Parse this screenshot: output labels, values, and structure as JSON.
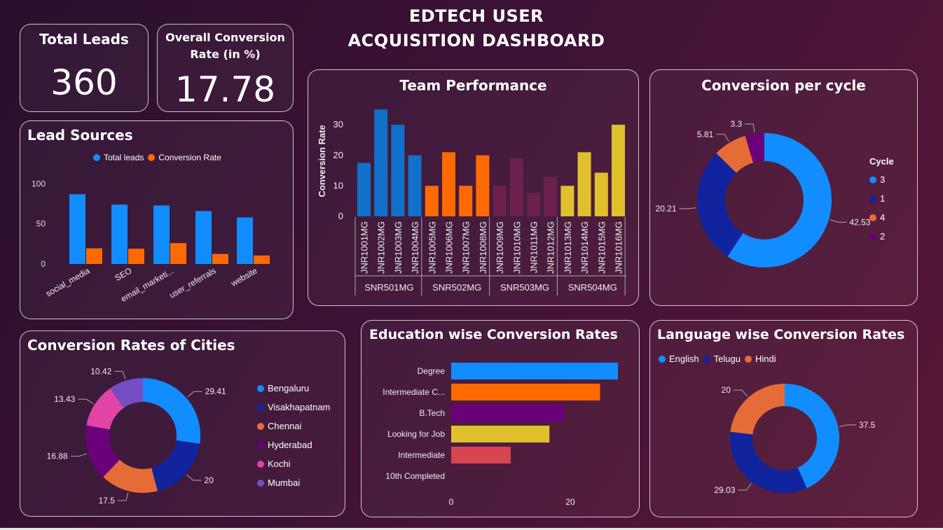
{
  "header": {
    "title_line1": "EDTECH USER",
    "title_line2": "ACQUISITION DASHBOARD"
  },
  "kpis": {
    "total_leads": {
      "label": "Total Leads",
      "value": "360"
    },
    "conversion_rate": {
      "label_line1": "Overall Conversion",
      "label_line2": "Rate (in %)",
      "value": "17.78"
    }
  },
  "colors": {
    "blue": "#118dff",
    "orange": "#ff6a00",
    "navy": "#12239e",
    "coral": "#e66c37",
    "purple": "#6b007b",
    "pink": "#e044a7",
    "violet": "#744ec2",
    "yellow": "#d9b300",
    "red": "#d64550"
  },
  "chart_data": [
    {
      "id": "lead_sources",
      "type": "bar",
      "title": "Lead Sources",
      "categories": [
        "social_media",
        "SEO",
        "email_marketi...",
        "user_referrals",
        "website"
      ],
      "series": [
        {
          "name": "Total leads",
          "values": [
            87,
            74,
            73,
            66,
            58
          ],
          "color": "#118dff"
        },
        {
          "name": "Conversion Rate",
          "values": [
            19.5,
            19,
            26,
            12.5,
            10.5
          ],
          "color": "#ff6a00"
        }
      ],
      "yticks": [
        "0",
        "50",
        "100"
      ],
      "ylim": [
        0,
        110
      ]
    },
    {
      "id": "team_performance",
      "type": "bar",
      "title": "Team Performance",
      "ylabel": "Conversion Rate",
      "ylim": [
        0,
        36
      ],
      "yticks": [
        "0",
        "10",
        "20",
        "30"
      ],
      "groups": [
        {
          "name": "SNR501MG",
          "color": "#1170c9",
          "members": [
            "JNR1001MG",
            "JNR1002MG",
            "JNR1003MG",
            "JNR1004MG"
          ],
          "values": [
            17.5,
            35,
            30,
            20
          ]
        },
        {
          "name": "SNR502MG",
          "color": "#ff6a00",
          "members": [
            "JNR1005MG",
            "JNR1006MG",
            "JNR1007MG",
            "JNR1008MG"
          ],
          "values": [
            10,
            21,
            10,
            20
          ]
        },
        {
          "name": "SNR503MG",
          "color": "#6b2050",
          "members": [
            "JNR1009MG",
            "JNR1010MG",
            "JNR1011MG",
            "JNR1012MG"
          ],
          "values": [
            10,
            19,
            7.7,
            13
          ]
        },
        {
          "name": "SNR504MG",
          "color": "#e0c02c",
          "members": [
            "JNR1013MG",
            "JNR1014MG",
            "JNR1015MG",
            "JNR1016MG"
          ],
          "values": [
            10,
            21,
            14.3,
            30
          ]
        }
      ]
    },
    {
      "id": "conversion_per_cycle",
      "type": "pie",
      "title": "Conversion per cycle",
      "legend_title": "Cycle",
      "slices": [
        {
          "label": "3",
          "value": 42.53,
          "color": "#118dff"
        },
        {
          "label": "1",
          "value": 20.21,
          "color": "#12239e"
        },
        {
          "label": "4",
          "value": 5.81,
          "color": "#e66c37"
        },
        {
          "label": "2",
          "value": 3.3,
          "color": "#6b007b"
        }
      ]
    },
    {
      "id": "cities",
      "type": "pie",
      "title": "Conversion Rates of Cities",
      "slices": [
        {
          "label": "Bengaluru",
          "value": 29.41,
          "color": "#118dff"
        },
        {
          "label": "Visakhapatnam",
          "value": 20,
          "color": "#12239e"
        },
        {
          "label": "Chennai",
          "value": 17.5,
          "color": "#e66c37"
        },
        {
          "label": "Hyderabad",
          "value": 16.88,
          "color": "#6b007b"
        },
        {
          "label": "Kochi",
          "value": 13.43,
          "color": "#e044a7"
        },
        {
          "label": "Mumbai",
          "value": 10.42,
          "color": "#744ec2"
        }
      ]
    },
    {
      "id": "education",
      "type": "bar",
      "orientation": "horizontal",
      "title": "Education wise Conversion Rates",
      "categories": [
        "Degree",
        "Intermediate C...",
        "B.Tech",
        "Looking for Job",
        "Intermediate",
        "10th Completed"
      ],
      "values": [
        28,
        25,
        19,
        16.5,
        10,
        0
      ],
      "colors": [
        "#118dff",
        "#ff6a00",
        "#6b007b",
        "#e0c02c",
        "#d64550",
        "#888888"
      ],
      "xticks": [
        "0",
        "20"
      ],
      "xlim": [
        0,
        30
      ]
    },
    {
      "id": "language",
      "type": "pie",
      "title": "Language wise Conversion Rates",
      "slices": [
        {
          "label": "English",
          "value": 37.5,
          "color": "#118dff"
        },
        {
          "label": "Telugu",
          "value": 29.03,
          "color": "#12239e"
        },
        {
          "label": "Hindi",
          "value": 20,
          "color": "#e66c37"
        }
      ]
    }
  ]
}
